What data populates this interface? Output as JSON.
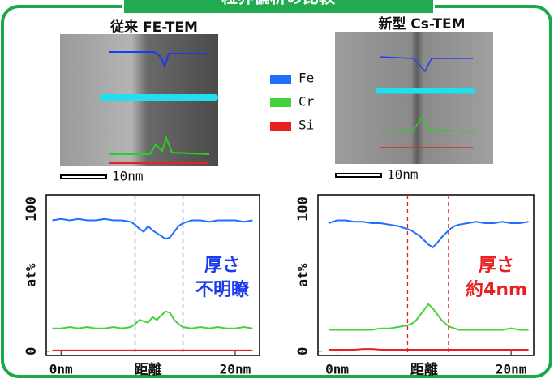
{
  "header": {
    "title": "粒界偏析の比較"
  },
  "chart_data": [
    {
      "type": "line",
      "title": "従来 FE-TEM",
      "scale_bar": "10nm",
      "x": [
        -1,
        0,
        1,
        2,
        3,
        4,
        5,
        6,
        7,
        8,
        8.5,
        9,
        9.5,
        10,
        10.5,
        11,
        11.5,
        12,
        12.5,
        13,
        13.5,
        14,
        15,
        16,
        17,
        18,
        19,
        20,
        21,
        22
      ],
      "series": [
        {
          "name": "Fe",
          "color": "#1f6fff",
          "values": [
            92,
            93,
            92,
            93,
            92,
            92,
            93,
            92,
            92,
            91,
            89,
            86,
            84,
            88,
            85,
            83,
            81,
            79,
            80,
            84,
            88,
            90,
            92,
            92,
            91,
            92,
            92,
            92,
            91,
            92
          ]
        },
        {
          "name": "Cr",
          "color": "#44d13a",
          "values": [
            16,
            16,
            17,
            16,
            17,
            16,
            16,
            17,
            16,
            17,
            19,
            22,
            21,
            20,
            24,
            22,
            25,
            28,
            27,
            22,
            19,
            17,
            16,
            17,
            16,
            17,
            16,
            16,
            17,
            16
          ]
        },
        {
          "name": "Si",
          "color": "#e82020",
          "values": [
            0.5,
            0.5,
            0.5,
            0.5,
            0.5,
            0.5,
            0.5,
            0.5,
            0.5,
            0.5,
            0.5,
            0.5,
            0.5,
            0.5,
            0.5,
            0.5,
            0.5,
            0.5,
            0.5,
            0.5,
            0.5,
            0.5,
            0.5,
            0.5,
            0.5,
            0.5,
            0.5,
            0.5,
            0.5,
            0.5
          ]
        }
      ],
      "xlim": [
        -1.7,
        22.8
      ],
      "xticks": [
        {
          "value": 0,
          "label": "0nm"
        },
        {
          "value": 20,
          "label": "20nm"
        }
      ],
      "xlabel": "距離",
      "ylim": [
        -3,
        110
      ],
      "yticks": [
        0,
        100
      ],
      "ylabel": "at%",
      "vlines": [
        8.5,
        14.0
      ],
      "vline_color": "#2a3ce0",
      "annotation": [
        "厚さ",
        "不明瞭"
      ],
      "annotation_color": "#1a3cf0"
    },
    {
      "type": "line",
      "title": "新型 Cs-TEM",
      "scale_bar": "10nm",
      "x": [
        -1,
        0,
        1,
        2,
        3,
        4,
        5,
        6,
        7,
        8,
        8.5,
        9,
        9.5,
        10,
        10.5,
        11,
        11.5,
        12,
        12.5,
        13,
        13.5,
        14,
        15,
        16,
        17,
        18,
        19,
        20,
        21,
        22
      ],
      "series": [
        {
          "name": "Fe",
          "color": "#1f6fff",
          "values": [
            90,
            92,
            92,
            91,
            91,
            90,
            90,
            89,
            88,
            86,
            85,
            83,
            81,
            78,
            75,
            73,
            76,
            80,
            83,
            86,
            88,
            89,
            90,
            91,
            90,
            90,
            91,
            90,
            90,
            91
          ]
        },
        {
          "name": "Cr",
          "color": "#44d13a",
          "values": [
            15,
            15,
            15,
            15,
            15,
            15,
            16,
            16,
            17,
            18,
            19,
            21,
            25,
            29,
            33,
            30,
            26,
            22,
            19,
            17,
            16,
            15,
            15,
            15,
            15,
            15,
            15,
            16,
            15,
            15
          ]
        },
        {
          "name": "Si",
          "color": "#e82020",
          "values": [
            1,
            1,
            1,
            1,
            1.5,
            1.5,
            1,
            1,
            1,
            1,
            1,
            1,
            1,
            1,
            1,
            1,
            1,
            1,
            1,
            1,
            1,
            1,
            1,
            1,
            1,
            1,
            1,
            1,
            1,
            1
          ]
        }
      ],
      "xlim": [
        -2.2,
        22.6
      ],
      "xticks": [
        {
          "value": 0,
          "label": "0nm"
        },
        {
          "value": 20,
          "label": "20nm"
        }
      ],
      "xlabel": "距離",
      "ylim": [
        -3,
        110
      ],
      "yticks": [
        0,
        100
      ],
      "ylabel": "at%",
      "vlines": [
        8.1,
        12.8
      ],
      "vline_color": "#e02020",
      "annotation": [
        "厚さ",
        "約4nm"
      ],
      "annotation_color": "#e82020"
    }
  ]
}
